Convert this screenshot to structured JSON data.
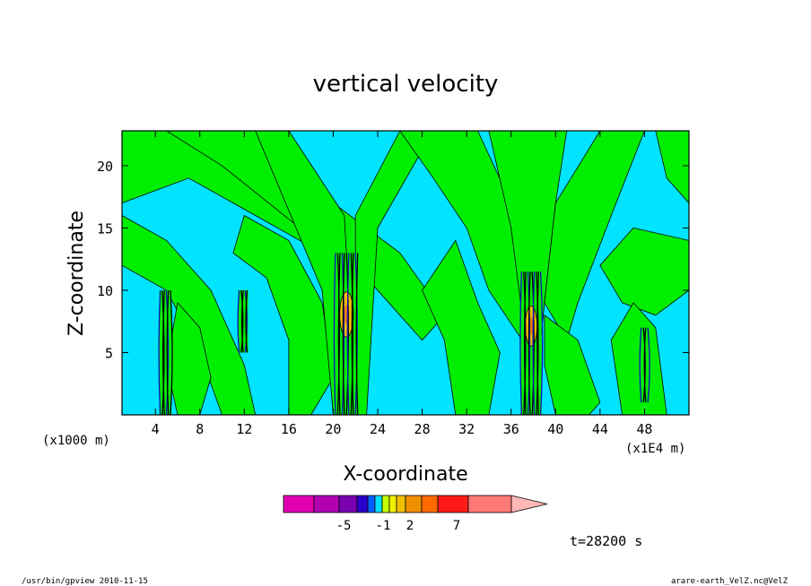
{
  "chart_data": {
    "type": "heatmap",
    "title": "vertical velocity",
    "xlabel": "X-coordinate",
    "ylabel": "Z-coordinate",
    "x_unit_left": "(x1000 m)",
    "x_unit_right": "(x1E4 m)",
    "xlim": [
      1,
      52
    ],
    "ylim": [
      0,
      22.8
    ],
    "x_ticks": [
      4,
      8,
      12,
      16,
      20,
      24,
      28,
      32,
      36,
      40,
      44,
      48
    ],
    "y_ticks": [
      5,
      10,
      15,
      20
    ],
    "colorbar": {
      "colors": [
        "#e000b0",
        "#b000b0",
        "#7a00b0",
        "#2a00c8",
        "#0060ff",
        "#00e0ff",
        "#c0ff00",
        "#f0f000",
        "#f0c000",
        "#f09000",
        "#ff6a00",
        "#ff1a1a",
        "#ff7878"
      ],
      "extend_color": "#ffb8b8",
      "labels": [
        "-5",
        "-1",
        "2",
        "7"
      ]
    },
    "field_colors": {
      "background": "#00e4ff",
      "positive_weak": "#00ee00",
      "positive_mid": "#f0c000",
      "positive_strong": "#f08000",
      "negative": "#1010c0",
      "contour": "#000000"
    },
    "convective_columns_x": [
      4.9,
      11.9,
      21.2,
      37.8,
      48
    ]
  },
  "time_label": "t=28200 s",
  "footer": {
    "left": "/usr/bin/gpview   2010-11-15",
    "right": "arare-earth_VelZ.nc@VelZ"
  }
}
